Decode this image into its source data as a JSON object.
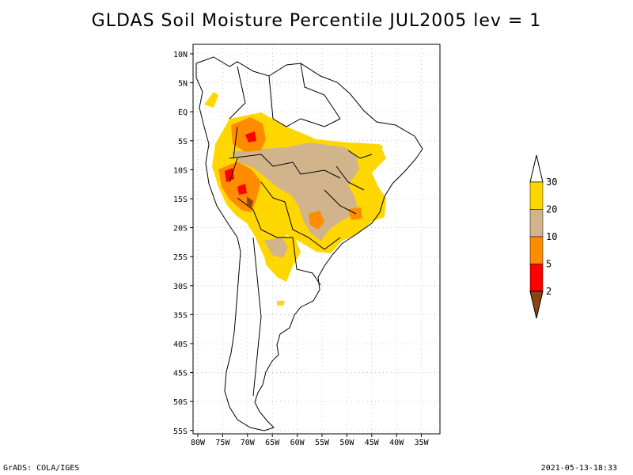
{
  "title": "GLDAS Soil Moisture Percentile JUL2005 lev = 1",
  "footer": {
    "left": "GrADS: COLA/IGES",
    "right": "2021-05-13-18:33"
  },
  "axes": {
    "lat_ticks": [
      "10N",
      "5N",
      "EQ",
      "5S",
      "10S",
      "15S",
      "20S",
      "25S",
      "30S",
      "35S",
      "40S",
      "45S",
      "50S",
      "55S"
    ],
    "lon_ticks": [
      "80W",
      "75W",
      "70W",
      "65W",
      "60W",
      "55W",
      "50W",
      "45W",
      "40W",
      "35W"
    ],
    "grid": "dotted"
  },
  "legend": {
    "placement": "right",
    "levels": [
      {
        "label": "30",
        "color": "#ffffff"
      },
      {
        "label": "20",
        "color": "#ffd700"
      },
      {
        "label": "10",
        "color": "#d2b48c"
      },
      {
        "label": "5",
        "color": "#ff8c00"
      },
      {
        "label": "2",
        "color": "#ff0000"
      },
      {
        "label": "",
        "color": "#8b4513"
      }
    ]
  },
  "colors": {
    "coast": "#000000",
    "grid": "#a0a0a0"
  }
}
